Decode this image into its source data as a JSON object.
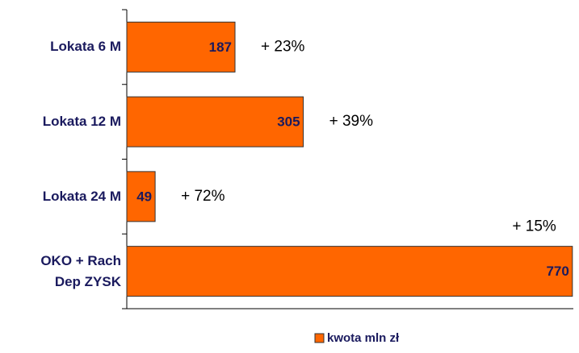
{
  "chart_data": {
    "type": "bar",
    "orientation": "horizontal",
    "categories": [
      "Lokata 6 M",
      "Lokata 12 M",
      "Lokata 24 M",
      "OKO + Rach\nDep ZYSK"
    ],
    "series": [
      {
        "name": "kwota mln zł",
        "color": "#ff6600",
        "values": [
          187,
          305,
          49,
          770
        ]
      }
    ],
    "annotations": [
      "+ 23%",
      "+ 39%",
      "+ 72%",
      "+ 15%"
    ],
    "xlim": [
      0,
      780
    ],
    "legend": "bottom"
  }
}
